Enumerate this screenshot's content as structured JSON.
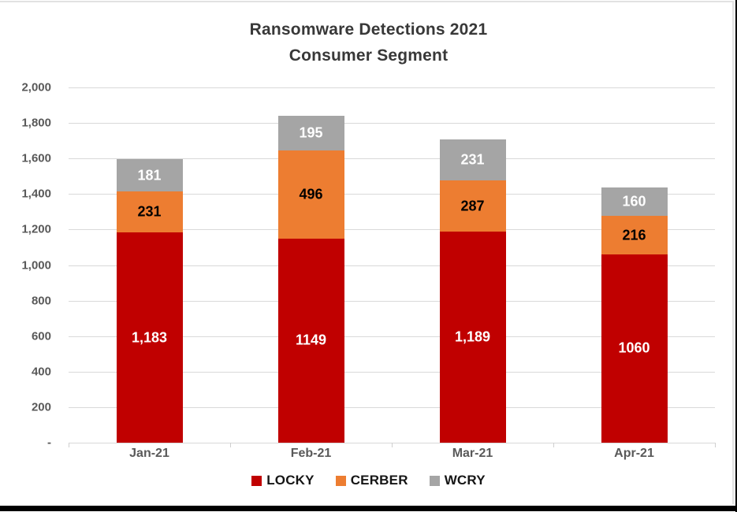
{
  "frame": {
    "background": "#FFFFFF",
    "chart_border_color": "#E2E2E2",
    "edge_color": "#000000"
  },
  "chart_data": {
    "type": "bar",
    "stacked": true,
    "title": "Ransomware Detections 2021 Consumer Segment",
    "title_lines": [
      "Ransomware Detections 2021",
      "Consumer Segment"
    ],
    "xlabel": "",
    "ylabel": "",
    "categories": [
      "Jan-21",
      "Feb-21",
      "Mar-21",
      "Apr-21"
    ],
    "series": [
      {
        "name": "LOCKY",
        "color": "#C00000",
        "label_color": "#FFFFFF",
        "values": [
          1183,
          1149,
          1189,
          1060
        ],
        "labels": [
          "1,183",
          "1149",
          "1,189",
          "1060"
        ]
      },
      {
        "name": "CERBER",
        "color": "#ED7D31",
        "label_color": "#000000",
        "values": [
          231,
          496,
          287,
          216
        ],
        "labels": [
          "231",
          "496",
          "287",
          "216"
        ]
      },
      {
        "name": "WCRY",
        "color": "#A5A5A5",
        "label_color": "#FFFFFF",
        "values": [
          181,
          195,
          231,
          160
        ],
        "labels": [
          "181",
          "195",
          "231",
          "160"
        ]
      }
    ],
    "totals": [
      1595,
      1840,
      1707,
      1436
    ],
    "ylim": [
      0,
      2000
    ],
    "ytick_interval": 200,
    "ytick_labels": [
      "2,000",
      "1,800",
      "1,600",
      "1,400",
      "1,200",
      "1,000",
      "800",
      "600",
      "400",
      "200",
      "-"
    ],
    "grid": true,
    "gridline_color": "#D9D9D9",
    "axis_label_color": "#595959",
    "legend_position": "bottom"
  }
}
